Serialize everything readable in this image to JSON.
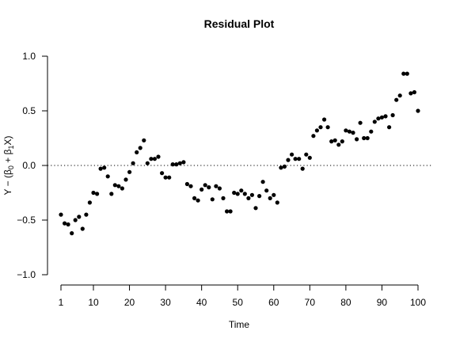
{
  "chart_data": {
    "type": "scatter",
    "title": "Residual Plot",
    "xlabel": "Time",
    "ylabel_parts": {
      "main": "Y − (β",
      "sub0": "0",
      "mid": " + β",
      "sub1": "1",
      "end": "X)"
    },
    "xlim": [
      1,
      100
    ],
    "ylim": [
      -1.0,
      1.0
    ],
    "x_ticks": [
      1,
      10,
      20,
      30,
      40,
      50,
      60,
      70,
      80,
      90,
      100
    ],
    "x_tick_labels": [
      "1",
      "10",
      "20",
      "30",
      "40",
      "50",
      "60",
      "70",
      "80",
      "90",
      "100"
    ],
    "y_ticks": [
      -1.0,
      -0.5,
      0.0,
      0.5,
      1.0
    ],
    "y_tick_labels": [
      "−1.0",
      "−0.5",
      "0.0",
      "0.5",
      "1.0"
    ],
    "reference_line_y": 0.0,
    "grid": false,
    "x": [
      1,
      2,
      3,
      4,
      5,
      6,
      7,
      8,
      9,
      10,
      11,
      12,
      13,
      14,
      15,
      16,
      17,
      18,
      19,
      20,
      21,
      22,
      23,
      24,
      25,
      26,
      27,
      28,
      29,
      30,
      31,
      32,
      33,
      34,
      35,
      36,
      37,
      38,
      39,
      40,
      41,
      42,
      43,
      44,
      45,
      46,
      47,
      48,
      49,
      50,
      51,
      52,
      53,
      54,
      55,
      56,
      57,
      58,
      59,
      60,
      61,
      62,
      63,
      64,
      65,
      66,
      67,
      68,
      69,
      70,
      71,
      72,
      73,
      74,
      75,
      76,
      77,
      78,
      79,
      80,
      81,
      82,
      83,
      84,
      85,
      86,
      87,
      88,
      89,
      90,
      91,
      92,
      93,
      94,
      95,
      96,
      97,
      98,
      99,
      100
    ],
    "y": [
      -0.45,
      -0.53,
      -0.54,
      -0.62,
      -0.5,
      -0.47,
      -0.58,
      -0.45,
      -0.34,
      -0.25,
      -0.26,
      -0.03,
      -0.02,
      -0.1,
      -0.26,
      -0.18,
      -0.19,
      -0.21,
      -0.13,
      -0.06,
      0.02,
      0.12,
      0.16,
      0.23,
      0.02,
      0.06,
      0.06,
      0.08,
      -0.07,
      -0.11,
      -0.11,
      0.01,
      0.01,
      0.02,
      0.03,
      -0.17,
      -0.19,
      -0.3,
      -0.32,
      -0.22,
      -0.18,
      -0.2,
      -0.31,
      -0.19,
      -0.21,
      -0.3,
      -0.42,
      -0.42,
      -0.25,
      -0.26,
      -0.23,
      -0.26,
      -0.3,
      -0.27,
      -0.39,
      -0.28,
      -0.15,
      -0.23,
      -0.3,
      -0.27,
      -0.34,
      -0.02,
      -0.01,
      0.05,
      0.1,
      0.06,
      0.06,
      -0.03,
      0.1,
      0.07,
      0.27,
      0.32,
      0.35,
      0.42,
      0.35,
      0.22,
      0.23,
      0.19,
      0.22,
      0.32,
      0.31,
      0.3,
      0.24,
      0.39,
      0.25,
      0.25,
      0.31,
      0.4,
      0.43,
      0.44,
      0.45,
      0.35,
      0.46,
      0.6,
      0.64,
      0.84,
      0.84,
      0.66,
      0.67,
      0.5
    ]
  }
}
